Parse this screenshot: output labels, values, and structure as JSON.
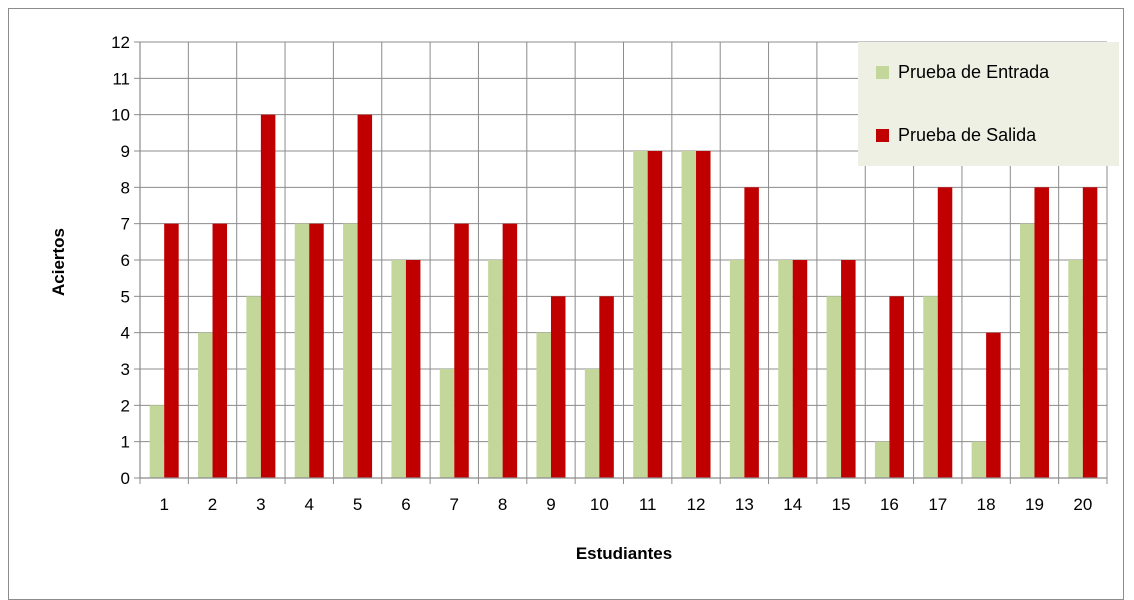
{
  "chart_data": {
    "type": "bar",
    "title": "",
    "xlabel": "Estudiantes",
    "ylabel": "Aciertos",
    "ylim": [
      0,
      12
    ],
    "yticks": [
      0,
      1,
      2,
      3,
      4,
      5,
      6,
      7,
      8,
      9,
      10,
      11,
      12
    ],
    "categories": [
      "1",
      "2",
      "3",
      "4",
      "5",
      "6",
      "7",
      "8",
      "9",
      "10",
      "11",
      "12",
      "13",
      "14",
      "15",
      "16",
      "17",
      "18",
      "19",
      "20"
    ],
    "series": [
      {
        "name": "Prueba de Entrada",
        "color": "#c4d79b",
        "values": [
          2,
          4,
          5,
          7,
          7,
          6,
          3,
          6,
          4,
          3,
          9,
          9,
          6,
          6,
          5,
          1,
          5,
          1,
          7,
          6
        ]
      },
      {
        "name": "Prueba de Salida",
        "color": "#c00000",
        "values": [
          7,
          7,
          10,
          7,
          10,
          6,
          7,
          7,
          5,
          5,
          9,
          9,
          8,
          6,
          6,
          5,
          8,
          4,
          8,
          8
        ]
      }
    ],
    "grid": true,
    "legend_position": "top-right",
    "legend_background": "#eef0e3",
    "grid_color": "#8c8c8c"
  }
}
